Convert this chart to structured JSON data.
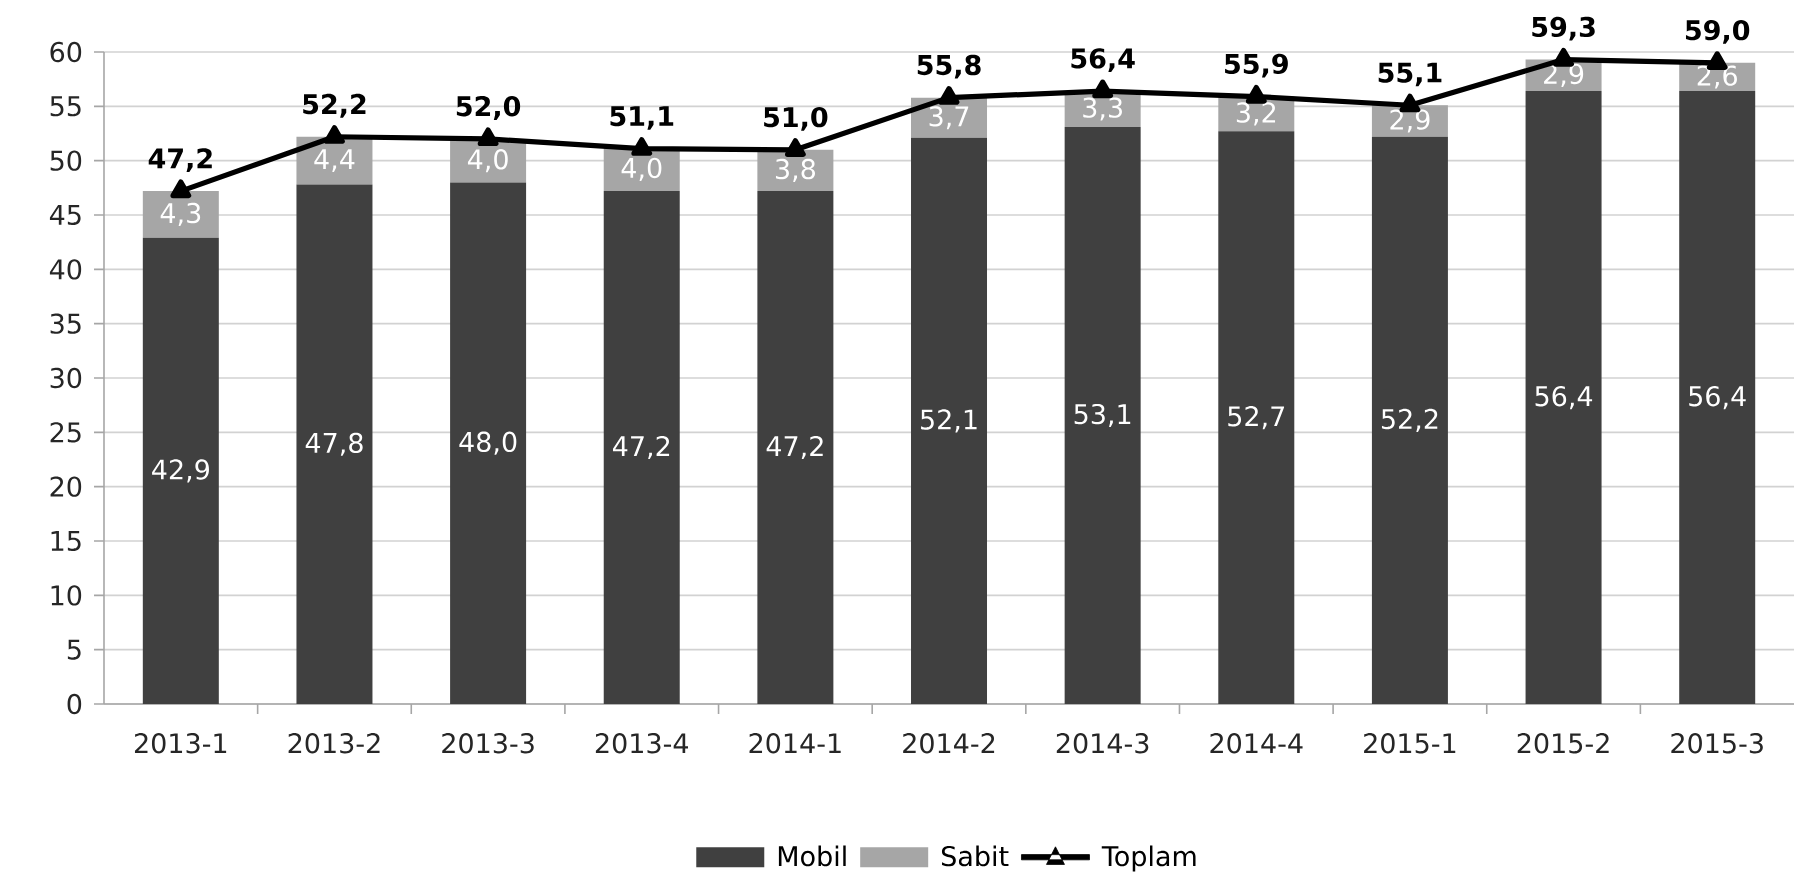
{
  "chart_data": {
    "type": "bar",
    "stacked": true,
    "categories": [
      "2013-1",
      "2013-2",
      "2013-3",
      "2013-4",
      "2014-1",
      "2014-2",
      "2014-3",
      "2014-4",
      "2015-1",
      "2015-2",
      "2015-3"
    ],
    "series": [
      {
        "name": "Mobil",
        "color": "#404040",
        "values": [
          42.9,
          47.8,
          48.0,
          47.2,
          47.2,
          52.1,
          53.1,
          52.7,
          52.2,
          56.4,
          56.4
        ],
        "value_labels": [
          "42,9",
          "47,8",
          "48,0",
          "47,2",
          "47,2",
          "52,1",
          "53,1",
          "52,7",
          "52,2",
          "56,4",
          "56,4"
        ]
      },
      {
        "name": "Sabit",
        "color": "#a6a6a6",
        "values": [
          4.3,
          4.4,
          4.0,
          4.0,
          3.8,
          3.7,
          3.3,
          3.2,
          2.9,
          2.9,
          2.6
        ],
        "value_labels": [
          "4,3",
          "4,4",
          "4,0",
          "4,0",
          "3,8",
          "3,7",
          "3,3",
          "3,2",
          "2,9",
          "2,9",
          "2,6"
        ]
      },
      {
        "name": "Toplam",
        "type": "line",
        "color": "#000000",
        "marker": "triangle",
        "line_style": "solid",
        "values": [
          47.2,
          52.2,
          52.0,
          51.1,
          51.0,
          55.8,
          56.4,
          55.9,
          55.1,
          59.3,
          59.0
        ],
        "value_labels": [
          "47,2",
          "52,2",
          "52,0",
          "51,1",
          "51,0",
          "55,8",
          "56,4",
          "55,9",
          "55,1",
          "59,3",
          "59,0"
        ]
      }
    ],
    "ylim": [
      0,
      60
    ],
    "yticks": [
      0,
      5,
      10,
      15,
      20,
      25,
      30,
      35,
      40,
      45,
      50,
      55,
      60
    ],
    "grid": "y",
    "legend": "bottom"
  }
}
